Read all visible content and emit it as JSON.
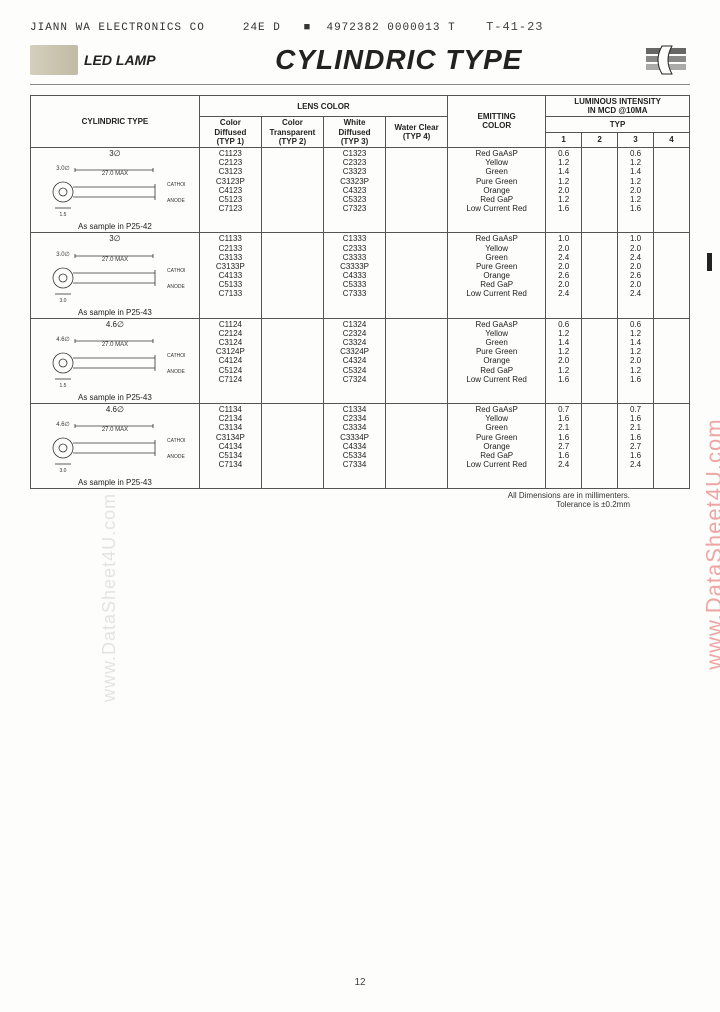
{
  "header": {
    "company": "JIANN WA ELECTRONICS CO",
    "code1": "24E D",
    "code2": "4972382 0000013 T",
    "handwritten": "T-41-23",
    "led_lamp": "LED LAMP",
    "title": "CYLINDRIC TYPE"
  },
  "table": {
    "col_cylindric": "CYLINDRIC TYPE",
    "col_lens": "LENS COLOR",
    "col_lens_sub": [
      "Color\nDiffused\n(TYP 1)",
      "Color\nTransparent\n(TYP 2)",
      "White\nDiffused\n(TYP 3)",
      "Water Clear\n(TYP 4)"
    ],
    "col_emit": "EMITTING\nCOLOR",
    "col_lum": "LUMINOUS INTENSITY\nIN MCD @10MA",
    "col_lum_sub": "TYP",
    "col_lum_nums": [
      "1",
      "2",
      "3",
      "4"
    ],
    "groups": [
      {
        "diameter": "3∅",
        "sample": "As sample in P25-42",
        "parts_typ1": [
          "C1123",
          "C2123",
          "C3123",
          "C3123P",
          "C4123",
          "C5123",
          "C7123"
        ],
        "parts_typ3": [
          "C1323",
          "C2323",
          "C3323",
          "C3323P",
          "C4323",
          "C5323",
          "C7323"
        ],
        "emit": [
          "Red GaAsP",
          "Yellow",
          "Green",
          "Pure Green",
          "Orange",
          "Red GaP",
          "Low Current Red"
        ],
        "lum1": [
          "0.6",
          "1.2",
          "1.4",
          "1.2",
          "2.0",
          "1.2",
          "1.6"
        ],
        "lum3": [
          "0.6",
          "1.2",
          "1.4",
          "1.2",
          "2.0",
          "1.2",
          "1.6"
        ]
      },
      {
        "diameter": "3∅",
        "sample": "As sample in P25-43",
        "parts_typ1": [
          "C1133",
          "C2133",
          "C3133",
          "C3133P",
          "C4133",
          "C5133",
          "C7133"
        ],
        "parts_typ3": [
          "C1333",
          "C2333",
          "C3333",
          "C3333P",
          "C4333",
          "C5333",
          "C7333"
        ],
        "emit": [
          "Red GaAsP",
          "Yellow",
          "Green",
          "Pure Green",
          "Orange",
          "Red GaP",
          "Low Current Red"
        ],
        "lum1": [
          "1.0",
          "2.0",
          "2.4",
          "2.0",
          "2.6",
          "2.0",
          "2.4"
        ],
        "lum3": [
          "1.0",
          "2.0",
          "2.4",
          "2.0",
          "2.6",
          "2.0",
          "2.4"
        ]
      },
      {
        "diameter": "4.6∅",
        "sample": "As sample in P25-43",
        "parts_typ1": [
          "C1124",
          "C2124",
          "C3124",
          "C3124P",
          "C4124",
          "C5124",
          "C7124"
        ],
        "parts_typ3": [
          "C1324",
          "C2324",
          "C3324",
          "C3324P",
          "C4324",
          "C5324",
          "C7324"
        ],
        "emit": [
          "Red GaAsP",
          "Yellow",
          "Green",
          "Pure Green",
          "Orange",
          "Red GaP",
          "Low Current Red"
        ],
        "lum1": [
          "0.6",
          "1.2",
          "1.4",
          "1.2",
          "2.0",
          "1.2",
          "1.6"
        ],
        "lum3": [
          "0.6",
          "1.2",
          "1.4",
          "1.2",
          "2.0",
          "1.2",
          "1.6"
        ]
      },
      {
        "diameter": "4.6∅",
        "sample": "As sample in P25-43",
        "parts_typ1": [
          "C1134",
          "C2134",
          "C3134",
          "C3134P",
          "C4134",
          "C5134",
          "C7134"
        ],
        "parts_typ3": [
          "C1334",
          "C2334",
          "C3334",
          "C3334P",
          "C4334",
          "C5334",
          "C7334"
        ],
        "emit": [
          "Red GaAsP",
          "Yellow",
          "Green",
          "Pure Green",
          "Orange",
          "Red GaP",
          "Low Current Red"
        ],
        "lum1": [
          "0.7",
          "1.6",
          "2.1",
          "1.6",
          "2.7",
          "1.6",
          "2.4"
        ],
        "lum3": [
          "0.7",
          "1.6",
          "2.1",
          "1.6",
          "2.7",
          "1.6",
          "2.4"
        ]
      }
    ]
  },
  "footnote_line1": "All Dimensions are in millimenters.",
  "footnote_line2": "Tolerance is ±0.2mm",
  "page_num": "12",
  "watermark_right": "www.DataSheet4U.com",
  "watermark_left": "www.DataSheet4U.com",
  "colors": {
    "text": "#222222",
    "border": "#555555",
    "bg": "#fdfdfb",
    "watermark_red": "rgba(220,60,60,0.45)",
    "watermark_gray": "rgba(150,150,150,0.25)"
  }
}
